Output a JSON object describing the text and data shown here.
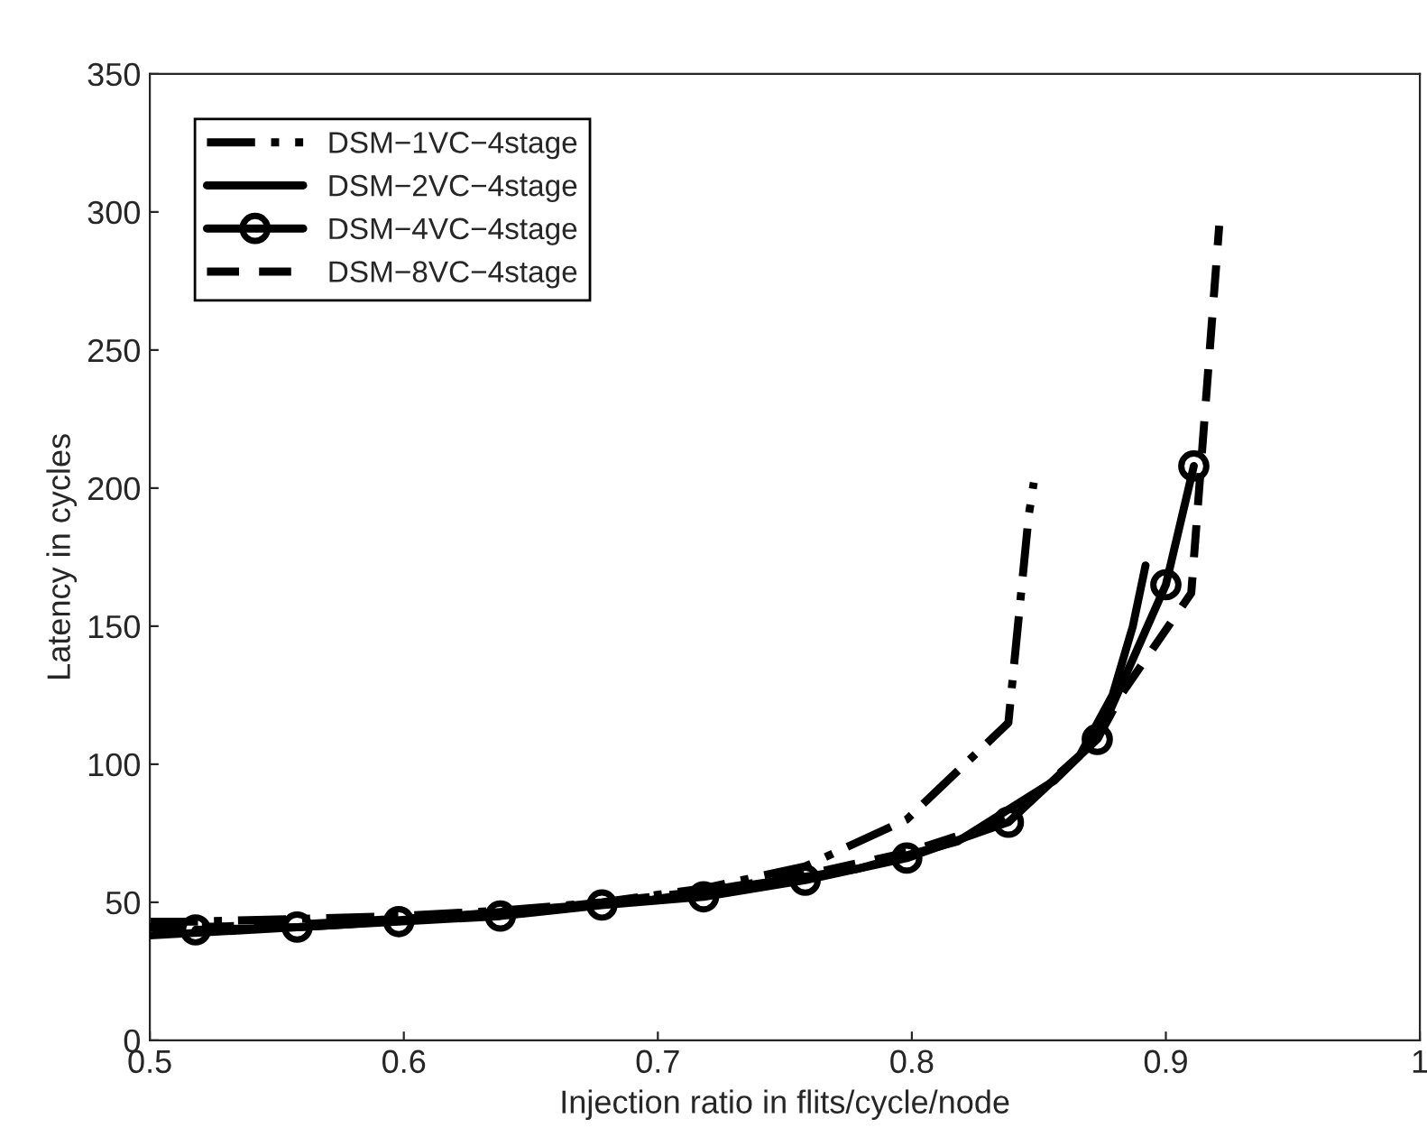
{
  "chart_data": {
    "type": "line",
    "xlabel": "Injection ratio in flits/cycle/node",
    "ylabel": "Latency in cycles",
    "xlim": [
      0.5,
      1
    ],
    "ylim": [
      0,
      350
    ],
    "xticks": [
      0.5,
      0.6,
      0.7,
      0.8,
      0.9,
      1
    ],
    "yticks": [
      0,
      50,
      100,
      150,
      200,
      250,
      300,
      350
    ],
    "grid": false,
    "legend": "top left",
    "series": [
      {
        "name": "DSM−1VC−4stage",
        "color": "#000000",
        "line_style": "dashdot",
        "marker": "none",
        "x": [
          0.5,
          0.518,
          0.558,
          0.598,
          0.638,
          0.678,
          0.718,
          0.758,
          0.798,
          0.838,
          0.846,
          0.848
        ],
        "values": [
          43,
          43,
          44,
          45,
          47,
          50,
          55,
          63,
          80,
          115,
          190,
          202
        ]
      },
      {
        "name": "DSM−2VC−4stage",
        "color": "#000000",
        "line_style": "solid",
        "marker": "none",
        "x": [
          0.5,
          0.578,
          0.698,
          0.778,
          0.818,
          0.856,
          0.866,
          0.879,
          0.887,
          0.892
        ],
        "values": [
          38,
          42,
          51,
          62,
          72,
          94,
          103,
          125,
          150,
          172
        ]
      },
      {
        "name": "DSM−4VC−4stage",
        "color": "#000000",
        "line_style": "solid",
        "marker": "circle",
        "x": [
          0.518,
          0.558,
          0.598,
          0.638,
          0.678,
          0.718,
          0.758,
          0.798,
          0.838,
          0.873,
          0.9,
          0.911
        ],
        "values": [
          40,
          41,
          43,
          45,
          49,
          52,
          58,
          66,
          79,
          109,
          165,
          208
        ]
      },
      {
        "name": "DSM−8VC−4stage",
        "color": "#000000",
        "line_style": "dashed",
        "marker": "none",
        "x": [
          0.5,
          0.518,
          0.558,
          0.598,
          0.638,
          0.678,
          0.718,
          0.758,
          0.798,
          0.838,
          0.873,
          0.883,
          0.91,
          0.921
        ],
        "values": [
          41,
          41,
          42,
          44,
          46,
          50,
          54,
          60,
          68,
          80,
          109,
          126,
          162,
          295
        ]
      }
    ]
  }
}
